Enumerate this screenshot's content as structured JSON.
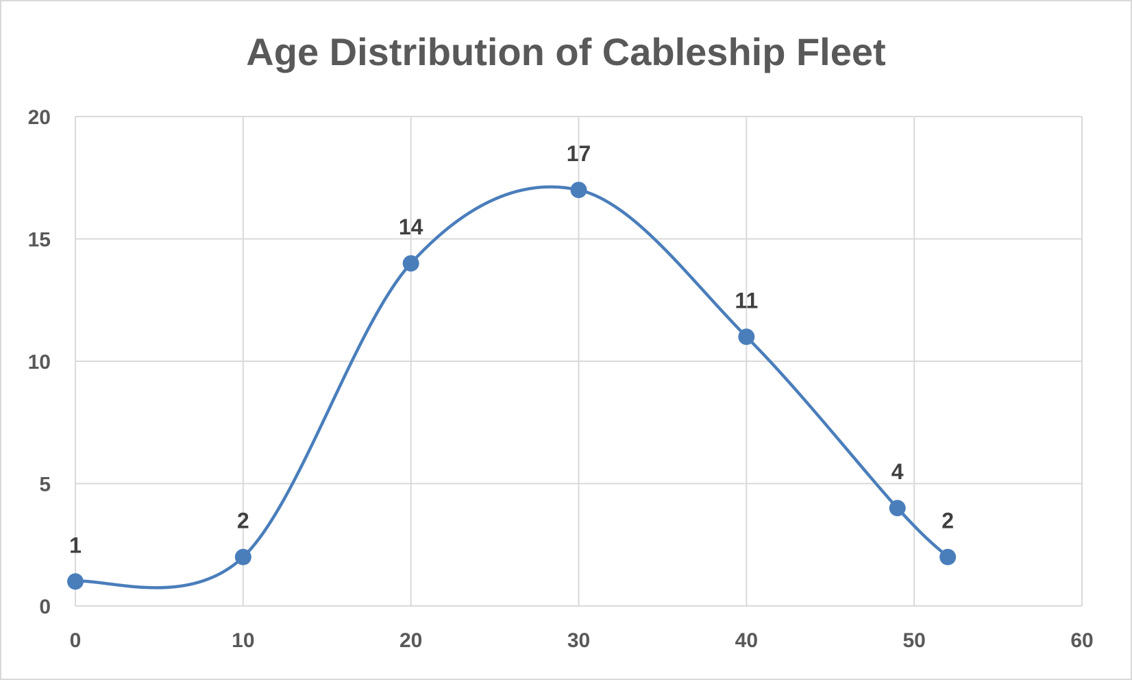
{
  "chart_data": {
    "type": "scatter",
    "title": "Age Distribution of Cableship Fleet",
    "xlabel": "",
    "ylabel": "",
    "xlim": [
      0,
      60
    ],
    "ylim": [
      0,
      20
    ],
    "x_ticks": [
      "0",
      "10",
      "20",
      "30",
      "40",
      "50",
      "60"
    ],
    "y_ticks": [
      "0",
      "5",
      "10",
      "15",
      "20"
    ],
    "grid": true,
    "smooth_line": true,
    "markers": true,
    "data_labels": true,
    "series": [
      {
        "color": "#4a7ebb",
        "points": [
          {
            "x": 0,
            "y": 1,
            "label": "1"
          },
          {
            "x": 10,
            "y": 2,
            "label": "2"
          },
          {
            "x": 20,
            "y": 14,
            "label": "14"
          },
          {
            "x": 30,
            "y": 17,
            "label": "17"
          },
          {
            "x": 40,
            "y": 11,
            "label": "11"
          },
          {
            "x": 49,
            "y": 4,
            "label": "4"
          },
          {
            "x": 52,
            "y": 2,
            "label": "2"
          }
        ]
      }
    ]
  }
}
